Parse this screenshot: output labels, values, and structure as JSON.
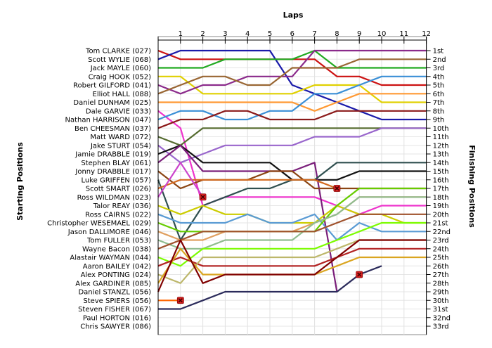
{
  "chart_data": {
    "type": "line",
    "x_title": "Laps",
    "y_left_title": "Starting Positions",
    "y_right_title": "Finishing Positions",
    "laps": [
      1,
      2,
      3,
      4,
      5,
      6,
      7,
      8,
      9,
      10,
      11,
      12
    ],
    "finishing_labels": [
      "1st",
      "2nd",
      "3rd",
      "4th",
      "5th",
      "6th",
      "7th",
      "8th",
      "9th",
      "10th",
      "11th",
      "12th",
      "13th",
      "14th",
      "15th",
      "16th",
      "17th",
      "18th",
      "19th",
      "20th",
      "21st",
      "22nd",
      "23rd",
      "24th",
      "25th",
      "26th",
      "27th",
      "28th",
      "29th",
      "30th",
      "31st",
      "32nd",
      "33rd"
    ],
    "grid": true,
    "drivers": [
      {
        "name": "Tom CLARKE (027)",
        "color": "#cc1111",
        "pos": [
          1,
          2,
          2,
          2,
          2,
          2,
          2,
          2,
          4,
          4,
          5,
          5,
          5
        ]
      },
      {
        "name": "Scott WYLIE (068)",
        "color": "#1a1aaa",
        "pos": [
          2,
          1,
          1,
          1,
          1,
          1,
          5,
          6,
          7,
          8,
          9,
          9,
          9
        ]
      },
      {
        "name": "Jack MAYLE (060)",
        "color": "#22aa22",
        "pos": [
          3,
          3,
          3,
          2,
          2,
          2,
          2,
          1,
          3,
          3,
          3,
          3,
          3
        ]
      },
      {
        "name": "Craig HOOK (052)",
        "color": "#e0d000",
        "pos": [
          4,
          4,
          6,
          6,
          6,
          6,
          6,
          5,
          5,
          5,
          7,
          7,
          7
        ]
      },
      {
        "name": "Robert GILFORD (041)",
        "color": "#8b2a8b",
        "pos": [
          5,
          6,
          5,
          5,
          4,
          4,
          4,
          1,
          1,
          1,
          1,
          1,
          1
        ]
      },
      {
        "name": "Elliot HALL (088)",
        "color": "#996633",
        "pos": [
          6,
          5,
          4,
          4,
          5,
          5,
          3,
          3,
          3,
          2,
          2,
          2,
          2
        ]
      },
      {
        "name": "Daniel DUNHAM (025)",
        "color": "#ff9933",
        "pos": [
          7,
          7,
          7,
          7,
          7,
          7,
          7,
          8,
          7,
          6,
          6,
          6,
          6
        ]
      },
      {
        "name": "Dale GARVIE (033)",
        "color": "#ee33cc",
        "pos": [
          8,
          10,
          19,
          18,
          18,
          18,
          18,
          18,
          19,
          20,
          19,
          19,
          19
        ]
      },
      {
        "name": "Nathan HARRISON (047)",
        "color": "#3a8fd6",
        "pos": [
          9,
          8,
          8,
          9,
          9,
          8,
          8,
          6,
          6,
          5,
          4,
          4,
          4
        ]
      },
      {
        "name": "Ben CHEESMAN (037)",
        "color": "#8b1a1a",
        "pos": [
          10,
          9,
          9,
          8,
          8,
          9,
          9,
          9,
          8,
          8,
          8,
          8,
          8
        ]
      },
      {
        "name": "Matt WARD (072)",
        "color": "#556b2f",
        "pos": [
          11,
          12,
          10,
          10,
          10,
          10,
          10,
          10,
          10,
          10,
          10,
          10,
          10
        ]
      },
      {
        "name": "Jake STURT (054)",
        "color": "#9966cc",
        "pos": [
          12,
          14,
          13,
          12,
          12,
          12,
          12,
          11,
          11,
          11,
          10,
          10,
          10
        ]
      },
      {
        "name": "Jamie DRABBLE (019)",
        "color": "#111111",
        "pos": [
          13,
          12,
          14,
          14,
          14,
          14,
          16,
          16,
          16,
          15,
          15,
          15,
          15
        ]
      },
      {
        "name": "Stephen BLAY (061)",
        "color": "#7a1f7a",
        "pos": [
          14,
          12,
          15,
          15,
          15,
          15,
          15,
          14,
          29,
          null,
          null,
          null,
          null
        ]
      },
      {
        "name": "Jonny DRABBLE (017)",
        "color": "#8b4513",
        "pos": [
          15,
          17,
          16,
          16,
          16,
          15,
          15,
          17,
          17,
          17,
          17,
          17,
          17
        ]
      },
      {
        "name": "Luke GRIFFEN (057)",
        "color": "#2f4f4f",
        "pos": [
          16,
          23,
          19,
          18,
          17,
          17,
          16,
          16,
          14,
          14,
          14,
          14,
          14
        ]
      },
      {
        "name": "Scott SMART (026)",
        "color": "#d2691e",
        "pos": [
          17,
          16,
          16,
          16,
          16,
          16,
          16,
          16,
          17,
          null,
          null,
          null,
          null
        ]
      },
      {
        "name": "Ross WILDMAN (023)",
        "color": "#cc44cc",
        "pos": [
          18,
          14,
          18,
          null,
          null,
          null,
          null,
          null,
          null,
          null,
          null,
          null,
          null
        ]
      },
      {
        "name": "Talor REAY (036)",
        "color": "#cccc00",
        "pos": [
          19,
          20,
          19,
          20,
          20,
          21,
          21,
          21,
          19,
          20,
          20,
          21,
          21
        ]
      },
      {
        "name": "Ross CAIRNS (022)",
        "color": "#5a9bd4",
        "pos": [
          20,
          21,
          21,
          21,
          20,
          21,
          21,
          20,
          23,
          21,
          22,
          22,
          22
        ]
      },
      {
        "name": "Christopher WESEMAEL (029)",
        "color": "#66cc00",
        "pos": [
          21,
          22,
          22,
          22,
          22,
          22,
          22,
          22,
          19,
          17,
          17,
          17,
          17
        ]
      },
      {
        "name": "Jason DALLIMORE (046)",
        "color": "#e0a060",
        "pos": [
          22,
          23,
          23,
          22,
          22,
          22,
          22,
          21,
          20,
          18,
          18,
          18,
          18
        ]
      },
      {
        "name": "Tom FULLER (053)",
        "color": "#8fbc8f",
        "pos": [
          23,
          24,
          24,
          23,
          23,
          23,
          23,
          21,
          20,
          18,
          18,
          18,
          18
        ]
      },
      {
        "name": "Wayne Bacon (038)",
        "color": "#a0522d",
        "pos": [
          24,
          23,
          22,
          22,
          22,
          22,
          22,
          22,
          21,
          20,
          20,
          20,
          20
        ]
      },
      {
        "name": "Alastair WAYMAN (044)",
        "color": "#7cfc00",
        "pos": [
          25,
          26,
          24,
          24,
          24,
          24,
          24,
          24,
          23,
          22,
          21,
          21,
          21
        ]
      },
      {
        "name": "Aaron BAILEY (042)",
        "color": "#b22222",
        "pos": [
          26,
          25,
          26,
          26,
          26,
          26,
          26,
          26,
          25,
          24,
          24,
          24,
          24
        ]
      },
      {
        "name": "Alex PONTING (024)",
        "color": "#bdb76b",
        "pos": [
          27,
          28,
          25,
          25,
          25,
          25,
          25,
          25,
          24,
          23,
          23,
          23,
          23
        ]
      },
      {
        "name": "Alex GARDINER (085)",
        "color": "#daa520",
        "pos": [
          28,
          24,
          27,
          27,
          27,
          27,
          27,
          27,
          26,
          25,
          25,
          25,
          25
        ]
      },
      {
        "name": "Daniel STANZL (056)",
        "color": "#800000",
        "pos": [
          29,
          23,
          28,
          27,
          27,
          27,
          27,
          27,
          25,
          23,
          23,
          23,
          23
        ]
      },
      {
        "name": "Steve SPIERS (056)",
        "color": "#ff6600",
        "pos": [
          30,
          30,
          null,
          null,
          null,
          null,
          null,
          null,
          null,
          null,
          null,
          null,
          null
        ]
      },
      {
        "name": "Steven FISHER (067)",
        "color": "#2b2b5b",
        "pos": [
          31,
          31,
          30,
          29,
          29,
          29,
          29,
          29,
          29,
          27,
          26,
          null,
          null
        ]
      }
    ],
    "non_starters": [
      "Paul HORTON (016)",
      "Chris SAWYER (086)"
    ],
    "retirements": [
      {
        "lap": 2,
        "pos": 18
      },
      {
        "lap": 1,
        "pos": 30
      },
      {
        "lap": 8,
        "pos": 17
      },
      {
        "lap": 9,
        "pos": 27
      }
    ]
  }
}
